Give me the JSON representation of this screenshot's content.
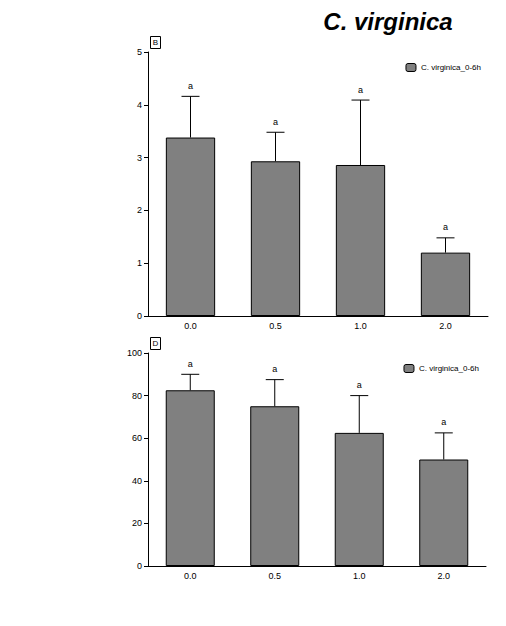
{
  "header": {
    "title": "C. virginica"
  },
  "chart_data": [
    {
      "type": "bar",
      "panel": "B",
      "categories": [
        "0.0",
        "0.5",
        "1.0",
        "2.0"
      ],
      "series": [
        {
          "name": "C. virginica_0-6h",
          "color": "#808080",
          "values": [
            3.38,
            2.93,
            2.86,
            1.2
          ],
          "error": [
            0.78,
            0.55,
            1.23,
            0.28
          ],
          "annotations": [
            "a",
            "a",
            "a",
            "a"
          ]
        }
      ],
      "ylim": [
        0,
        5
      ],
      "yticks": [
        0,
        1,
        2,
        3,
        4,
        5
      ],
      "grid": false,
      "legend": "top-right"
    },
    {
      "type": "bar",
      "panel": "D",
      "categories": [
        "0.0",
        "0.5",
        "1.0",
        "2.0"
      ],
      "series": [
        {
          "name": "C. virginica_0-6h",
          "color": "#808080",
          "values": [
            82.5,
            75,
            62.5,
            50
          ],
          "error": [
            7.5,
            12.5,
            17.5,
            12.5
          ],
          "annotations": [
            "a",
            "a",
            "a",
            "a"
          ]
        }
      ],
      "ylim": [
        0,
        100
      ],
      "yticks": [
        0,
        20,
        40,
        60,
        80,
        100
      ],
      "grid": false,
      "legend": "top-right"
    }
  ]
}
